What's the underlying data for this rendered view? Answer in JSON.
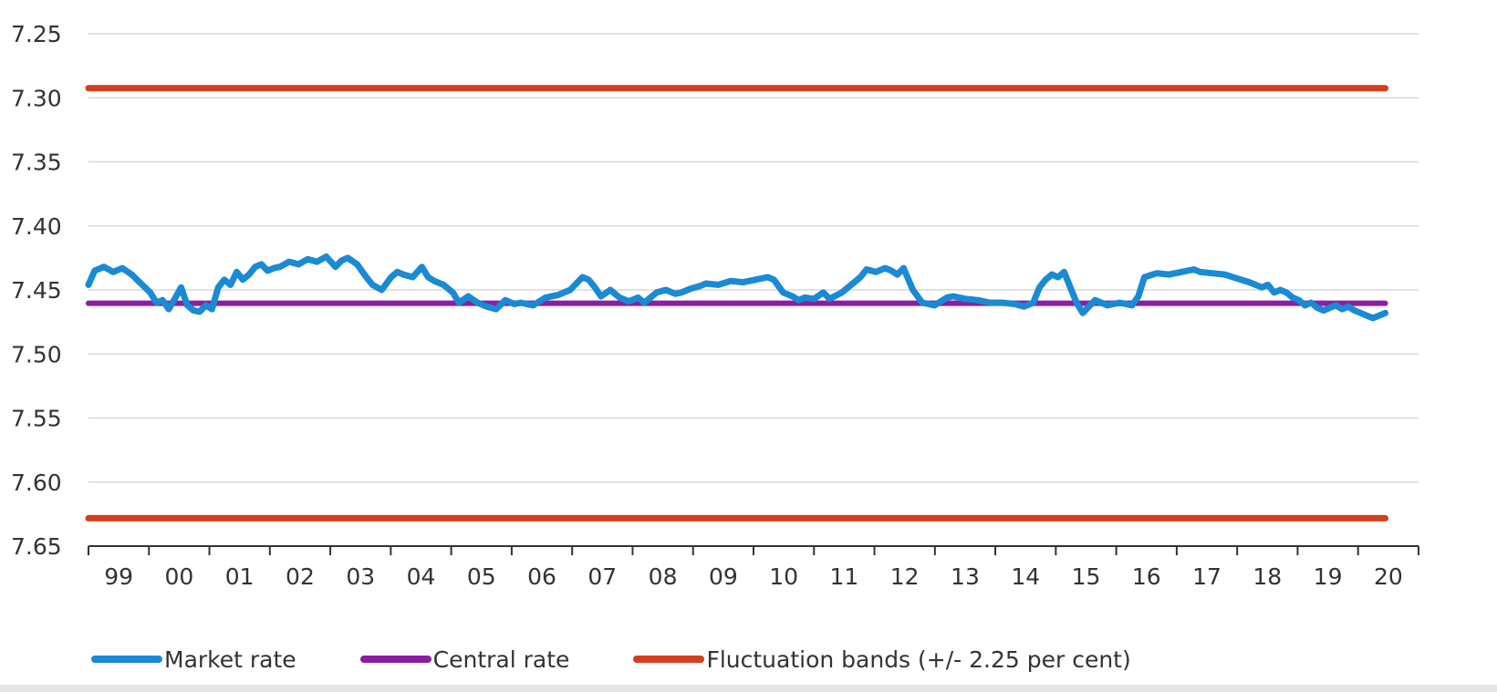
{
  "chart_data": {
    "type": "line",
    "title": "",
    "xlabel": "",
    "ylabel": "",
    "ylim": [
      7.25,
      7.65
    ],
    "y_inverted": true,
    "y_ticks": [
      "7.25",
      "7.30",
      "7.35",
      "7.40",
      "7.45",
      "7.50",
      "7.55",
      "7.60",
      "7.65"
    ],
    "x_tick_labels": [
      "99",
      "00",
      "01",
      "02",
      "03",
      "04",
      "05",
      "06",
      "07",
      "08",
      "09",
      "10",
      "11",
      "12",
      "13",
      "14",
      "15",
      "16",
      "17",
      "18",
      "19",
      "20"
    ],
    "grid": true,
    "legend_position": "bottom",
    "series": [
      {
        "name": "Market rate",
        "color": "#1a8ad4",
        "x": [
          1999.0,
          1999.1,
          1999.25,
          1999.4,
          1999.55,
          1999.7,
          1999.85,
          2000.0,
          2000.1,
          2000.2,
          2000.3,
          2000.42,
          2000.5,
          2000.6,
          2000.7,
          2000.8,
          2000.9,
          2001.0,
          2001.1,
          2001.2,
          2001.3,
          2001.4,
          2001.5,
          2001.6,
          2001.7,
          2001.8,
          2001.9,
          2002.0,
          2002.1,
          2002.25,
          2002.4,
          2002.55,
          2002.7,
          2002.85,
          2003.0,
          2003.1,
          2003.2,
          2003.35,
          2003.5,
          2003.6,
          2003.75,
          2003.9,
          2004.0,
          2004.1,
          2004.25,
          2004.4,
          2004.5,
          2004.6,
          2004.75,
          2004.9,
          2005.0,
          2005.15,
          2005.3,
          2005.45,
          2005.6,
          2005.75,
          2005.9,
          2006.0,
          2006.2,
          2006.4,
          2006.6,
          2006.8,
          2007.0,
          2007.1,
          2007.2,
          2007.3,
          2007.45,
          2007.6,
          2007.75,
          2007.9,
          2008.0,
          2008.2,
          2008.35,
          2008.5,
          2008.6,
          2008.75,
          2008.9,
          2009.0,
          2009.2,
          2009.4,
          2009.6,
          2009.8,
          2010.0,
          2010.1,
          2010.25,
          2010.4,
          2010.5,
          2010.6,
          2010.75,
          2010.9,
          2011.0,
          2011.2,
          2011.35,
          2011.5,
          2011.6,
          2011.75,
          2011.9,
          2012.0,
          2012.1,
          2012.2,
          2012.35,
          2012.5,
          2012.7,
          2012.9,
          2013.0,
          2013.2,
          2013.4,
          2013.6,
          2013.8,
          2014.0,
          2014.15,
          2014.3,
          2014.4,
          2014.5,
          2014.6,
          2014.7,
          2014.8,
          2014.9,
          2015.0,
          2015.1,
          2015.3,
          2015.5,
          2015.7,
          2015.9,
          2016.0,
          2016.1,
          2016.3,
          2016.5,
          2016.7,
          2016.9,
          2017.0,
          2017.2,
          2017.4,
          2017.6,
          2017.8,
          2018.0,
          2018.1,
          2018.2,
          2018.3,
          2018.4,
          2018.5,
          2018.6,
          2018.7,
          2018.8,
          2018.9,
          2019.0,
          2019.1,
          2019.2,
          2019.3,
          2019.4,
          2019.5,
          2019.6,
          2019.7,
          2019.8,
          2019.9,
          2020.0
        ],
        "values": [
          7.446,
          7.435,
          7.432,
          7.436,
          7.433,
          7.438,
          7.445,
          7.452,
          7.46,
          7.458,
          7.465,
          7.455,
          7.448,
          7.462,
          7.466,
          7.467,
          7.462,
          7.465,
          7.448,
          7.442,
          7.446,
          7.436,
          7.442,
          7.438,
          7.432,
          7.43,
          7.435,
          7.433,
          7.432,
          7.428,
          7.43,
          7.426,
          7.428,
          7.424,
          7.432,
          7.427,
          7.425,
          7.43,
          7.44,
          7.446,
          7.45,
          7.44,
          7.436,
          7.438,
          7.44,
          7.432,
          7.44,
          7.443,
          7.446,
          7.452,
          7.46,
          7.455,
          7.46,
          7.463,
          7.465,
          7.458,
          7.461,
          7.46,
          7.462,
          7.456,
          7.454,
          7.45,
          7.44,
          7.442,
          7.448,
          7.455,
          7.45,
          7.456,
          7.459,
          7.456,
          7.46,
          7.452,
          7.45,
          7.453,
          7.452,
          7.449,
          7.447,
          7.445,
          7.446,
          7.443,
          7.444,
          7.442,
          7.44,
          7.442,
          7.452,
          7.455,
          7.458,
          7.456,
          7.457,
          7.452,
          7.457,
          7.452,
          7.446,
          7.44,
          7.434,
          7.436,
          7.433,
          7.435,
          7.438,
          7.433,
          7.45,
          7.46,
          7.462,
          7.456,
          7.455,
          7.457,
          7.458,
          7.46,
          7.46,
          7.461,
          7.463,
          7.46,
          7.448,
          7.442,
          7.438,
          7.44,
          7.436,
          7.448,
          7.46,
          7.468,
          7.458,
          7.462,
          7.46,
          7.462,
          7.455,
          7.44,
          7.437,
          7.438,
          7.436,
          7.434,
          7.436,
          7.437,
          7.438,
          7.441,
          7.444,
          7.448,
          7.446,
          7.452,
          7.45,
          7.452,
          7.456,
          7.458,
          7.462,
          7.46,
          7.464,
          7.466,
          7.464,
          7.462,
          7.465,
          7.463,
          7.466,
          7.468,
          7.47,
          7.472,
          7.47,
          7.468
        ],
        "values_end_note": ""
      },
      {
        "name": "Central rate",
        "color": "#8a1ea3",
        "x": [
          1999.0,
          2020.0
        ],
        "values": [
          7.46038,
          7.46038
        ]
      },
      {
        "name": "Fluctuation bands (+/- 2.25 per cent)",
        "color": "#d33f1e",
        "x": [
          1999.0,
          2020.0
        ],
        "values": [
          7.62824,
          7.62824
        ],
        "upper_values": [
          7.29252,
          7.29252
        ]
      }
    ]
  }
}
